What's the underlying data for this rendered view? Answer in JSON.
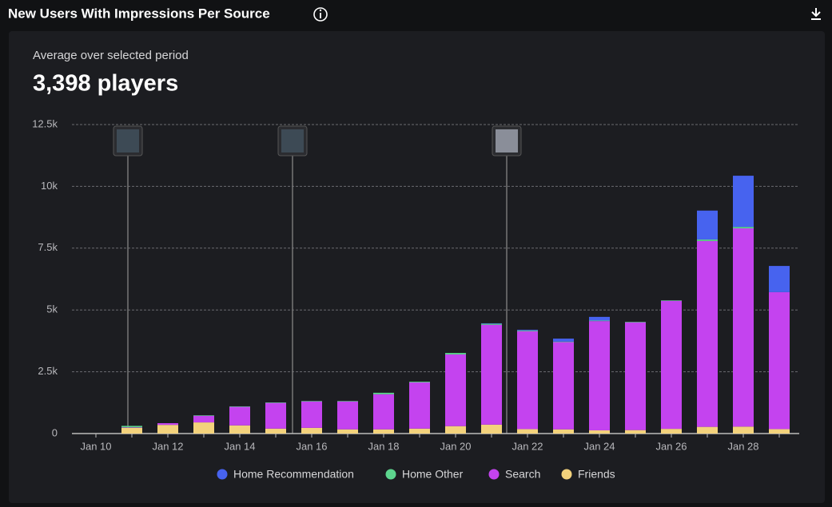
{
  "header": {
    "title": "New Users With Impressions Per Source"
  },
  "summary": {
    "label": "Average over selected period",
    "value": "3,398 players"
  },
  "chart_data": {
    "type": "stacked_bar",
    "categories": [
      "Jan 10",
      null,
      "Jan 12",
      null,
      "Jan 14",
      null,
      "Jan 16",
      null,
      "Jan 18",
      null,
      "Jan 20",
      null,
      "Jan 22",
      null,
      "Jan 24",
      null,
      "Jan 26",
      null,
      "Jan 28",
      null
    ],
    "series": [
      {
        "name": "Friends",
        "color": "#f3d27c",
        "values": [
          0,
          230,
          350,
          450,
          330,
          200,
          230,
          170,
          170,
          200,
          300,
          360,
          180,
          170,
          130,
          140,
          190,
          270,
          280,
          180
        ]
      },
      {
        "name": "Search",
        "color": "#c443ef",
        "values": [
          0,
          20,
          70,
          270,
          750,
          1040,
          1070,
          1130,
          1420,
          1870,
          2900,
          4040,
          3960,
          3530,
          4420,
          4360,
          5180,
          7520,
          8020,
          5540
        ]
      },
      {
        "name": "Home Other",
        "color": "#5dd58e",
        "values": [
          0,
          60,
          0,
          20,
          20,
          20,
          20,
          20,
          60,
          30,
          60,
          40,
          30,
          20,
          20,
          20,
          20,
          60,
          60,
          0
        ]
      },
      {
        "name": "Home Recommendation",
        "color": "#4763ef",
        "values": [
          0,
          0,
          0,
          0,
          0,
          0,
          0,
          0,
          0,
          0,
          0,
          20,
          30,
          120,
          150,
          0,
          0,
          1170,
          2070,
          1060
        ]
      }
    ],
    "ylim": [
      0,
      12500
    ],
    "yticks": [
      0,
      {
        "value": 2500,
        "label": "2.5k"
      },
      {
        "value": 5000,
        "label": "5k"
      },
      {
        "value": 7500,
        "label": "7.5k"
      },
      {
        "value": 10000,
        "label": "10k"
      },
      {
        "value": 12500,
        "label": "12.5k"
      }
    ],
    "grid": true
  }
}
